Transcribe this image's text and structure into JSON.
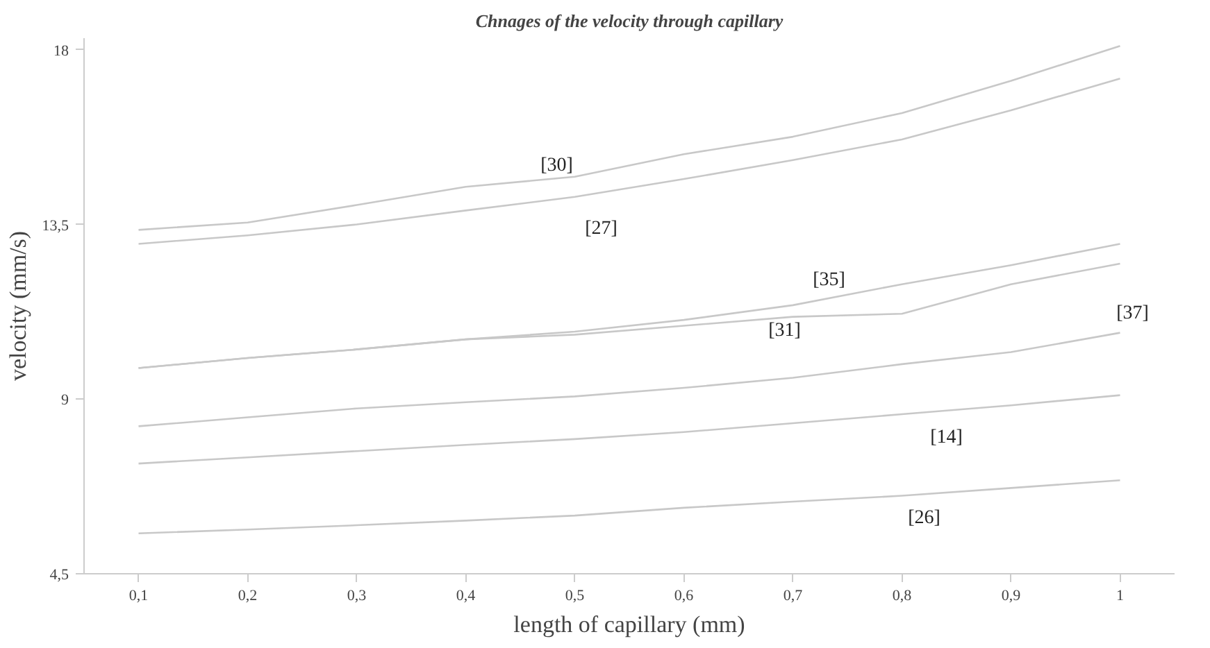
{
  "chart_data": {
    "type": "line",
    "title": "Chnages of the velocity through capillary",
    "xlabel": "length of capillary (mm)",
    "ylabel": "velocity (mm/s)",
    "x": [
      0.1,
      0.2,
      0.3,
      0.4,
      0.5,
      0.6,
      0.7,
      0.8,
      0.9,
      1
    ],
    "xlim": [
      0.05,
      1.05
    ],
    "ylim": [
      4.5,
      18.3
    ],
    "xticks": [
      {
        "value": 0.1,
        "label": "0,1"
      },
      {
        "value": 0.2,
        "label": "0,2"
      },
      {
        "value": 0.3,
        "label": "0,3"
      },
      {
        "value": 0.4,
        "label": "0,4"
      },
      {
        "value": 0.5,
        "label": "0,5"
      },
      {
        "value": 0.6,
        "label": "0,6"
      },
      {
        "value": 0.7,
        "label": "0,7"
      },
      {
        "value": 0.8,
        "label": "0,8"
      },
      {
        "value": 0.9,
        "label": "0,9"
      },
      1
    ],
    "yticks": [
      {
        "value": 4.5,
        "label": "4,5"
      },
      9,
      {
        "value": 13.5,
        "label": "13,5"
      },
      18
    ],
    "grid": false,
    "legend": false,
    "marker": "none",
    "line_style": "solid",
    "series": [
      {
        "name": "[30]",
        "color": "#c8c8c8",
        "values": [
          13.36,
          13.55,
          14.0,
          14.47,
          14.73,
          15.31,
          15.76,
          16.37,
          17.2,
          18.1
        ]
      },
      {
        "name": "[27]",
        "color": "#c8c8c8",
        "values": [
          13.0,
          13.22,
          13.5,
          13.86,
          14.21,
          14.67,
          15.16,
          15.69,
          16.44,
          17.26
        ]
      },
      {
        "name": "[35]",
        "color": "#c8c8c8",
        "values": [
          9.8,
          10.06,
          10.28,
          10.54,
          10.74,
          11.04,
          11.42,
          11.96,
          12.45,
          13.0
        ]
      },
      {
        "name": "[31]",
        "color": "#c8c8c8",
        "values": [
          9.8,
          10.06,
          10.28,
          10.54,
          10.66,
          10.89,
          11.12,
          11.2,
          11.96,
          12.49
        ]
      },
      {
        "name": "[37]",
        "color": "#c8c8c8",
        "values": [
          8.3,
          8.53,
          8.76,
          8.92,
          9.07,
          9.29,
          9.55,
          9.9,
          10.21,
          10.71
        ]
      },
      {
        "name": "[14]",
        "color": "#c8c8c8",
        "values": [
          7.34,
          7.5,
          7.66,
          7.82,
          7.97,
          8.15,
          8.38,
          8.61,
          8.84,
          9.1
        ]
      },
      {
        "name": "[26]",
        "color": "#c8c8c8",
        "values": [
          5.54,
          5.64,
          5.75,
          5.87,
          6.0,
          6.2,
          6.36,
          6.51,
          6.71,
          6.91
        ]
      }
    ]
  }
}
